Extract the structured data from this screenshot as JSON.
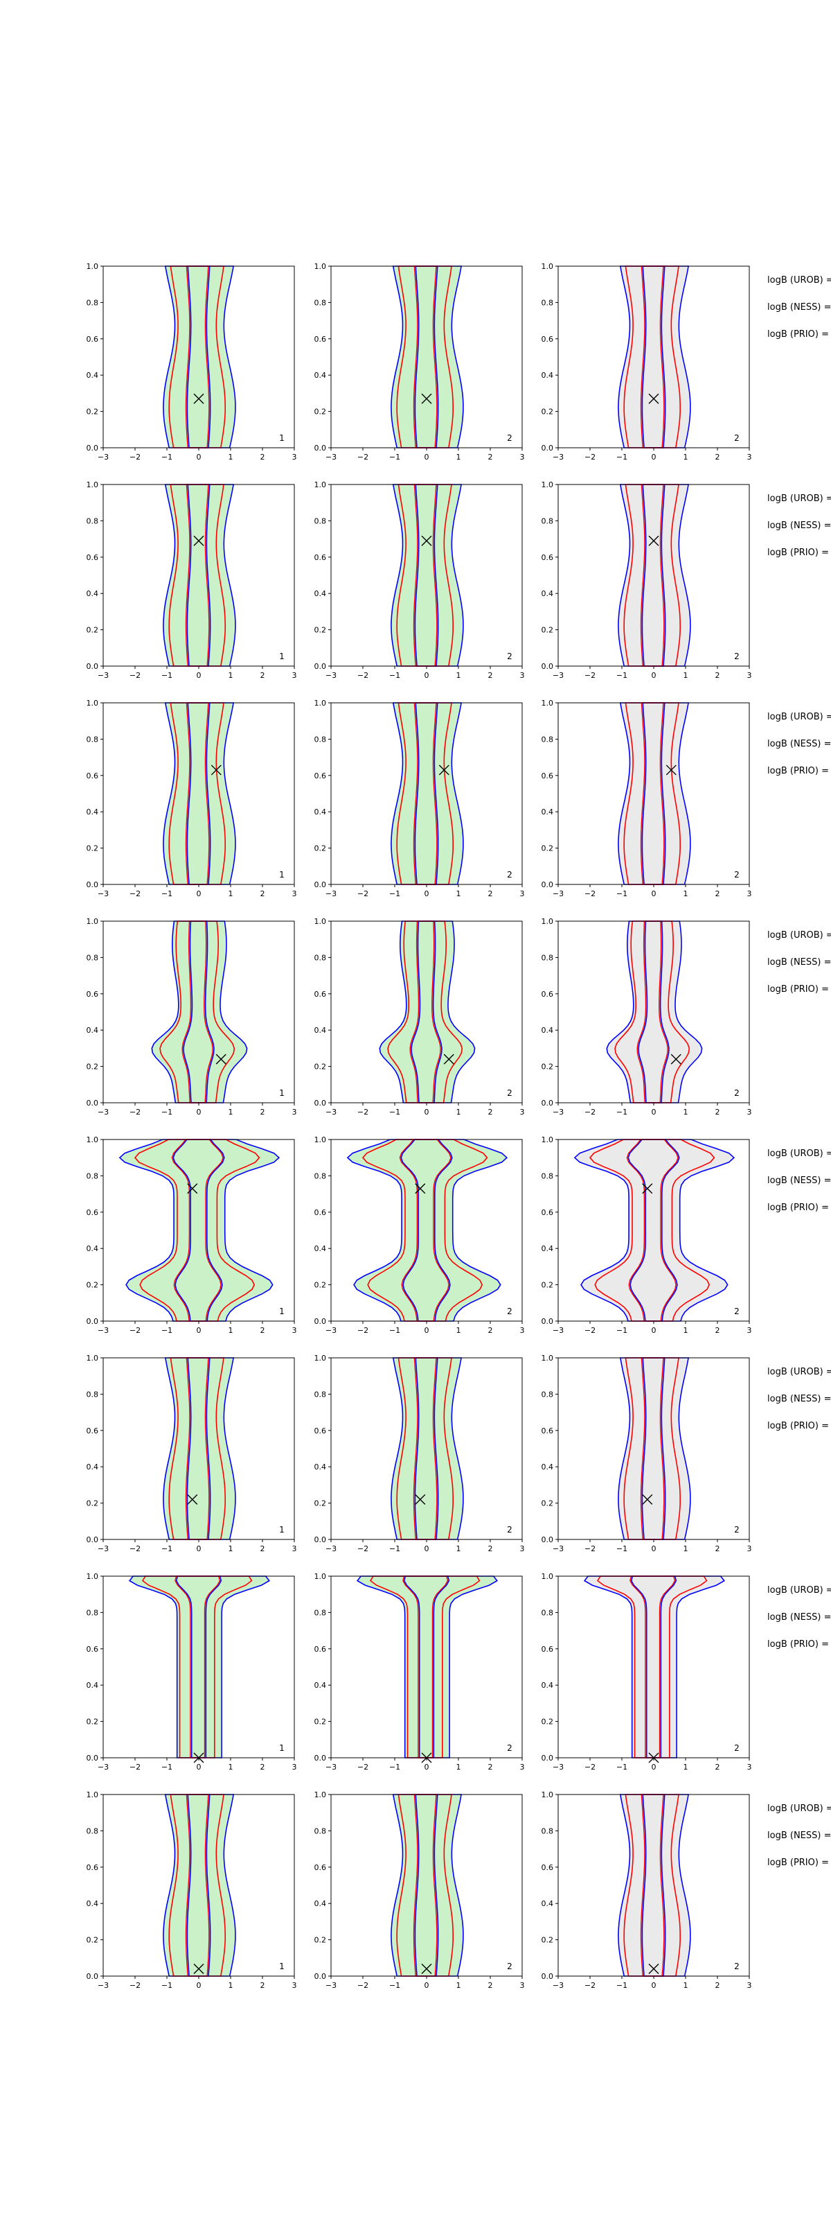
{
  "figure": {
    "row_annotations": [
      "logB (UROB) =",
      "logB (NESS) =",
      "logB (PRIO) ="
    ],
    "column_labels": [
      "1",
      "2",
      "2"
    ]
  },
  "chart_data": {
    "type": "contour",
    "grid": "8 rows x 3 columns",
    "xlim": [
      -3,
      3
    ],
    "ylim": [
      0,
      1
    ],
    "xticks": [
      -3,
      -2,
      -1,
      0,
      1,
      2,
      3
    ],
    "yticks": [
      0.0,
      0.2,
      0.4,
      0.6,
      0.8,
      1.0
    ],
    "colors": {
      "fill_col1": "#b8ecb4",
      "fill_col2": "#b8ecb4",
      "fill_col3": "#dcdcdc",
      "blue_contour": "#0000ff",
      "red_contour": "#ff0000",
      "marker": "#000000"
    },
    "rows": [
      {
        "marker": [
          0.0,
          0.27
        ],
        "shape": "column"
      },
      {
        "marker": [
          0.0,
          0.69
        ],
        "shape": "column"
      },
      {
        "marker": [
          0.55,
          0.63
        ],
        "shape": "column"
      },
      {
        "marker": [
          0.7,
          0.24
        ],
        "shape": "bulge-low"
      },
      {
        "marker": [
          -0.2,
          0.73
        ],
        "shape": "hourglass"
      },
      {
        "marker": [
          -0.2,
          0.22
        ],
        "shape": "column"
      },
      {
        "marker": [
          0.0,
          0.0
        ],
        "shape": "mushroom"
      },
      {
        "marker": [
          0.0,
          0.04
        ],
        "shape": "column"
      }
    ]
  }
}
